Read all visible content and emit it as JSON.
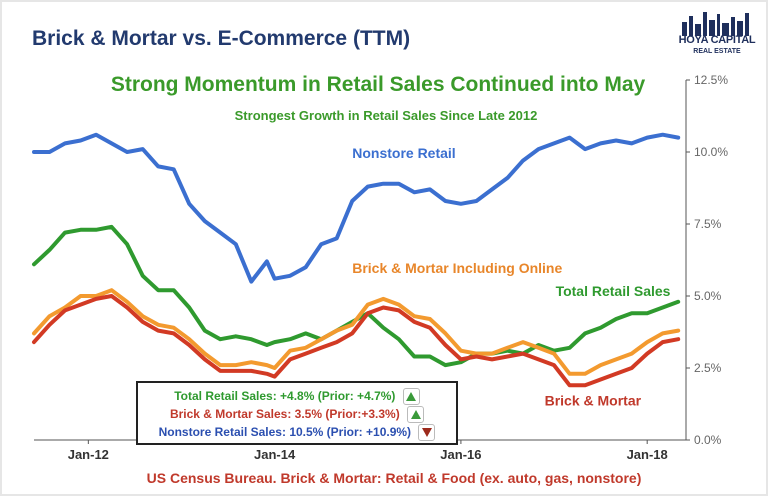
{
  "chart_data": {
    "type": "line",
    "title": "Brick & Mortar vs. E-Commerce (TTM)",
    "headline": "Strong Momentum in Retail Sales Continued into May",
    "subtitle": "Strongest Growth in Retail Sales Since Late 2012",
    "source": "US Census Bureau. Brick & Mortar: Retail & Food (ex. auto, gas, nonstore)",
    "x_tick_labels": [
      "Jan-12",
      "Jan-14",
      "Jan-16",
      "Jan-18"
    ],
    "y_tick_labels": [
      "0.0%",
      "2.5%",
      "5.0%",
      "7.5%",
      "10.0%",
      "12.5%"
    ],
    "ylim": [
      0,
      12.5
    ],
    "y_axis_side": "right",
    "grid": false,
    "series": [
      {
        "name": "Nonstore Retail",
        "color": "#3b6fd0",
        "label_color": "#3b6fd0",
        "points": [
          [
            "2011-06",
            10.0
          ],
          [
            "2011-08",
            10.0
          ],
          [
            "2011-10",
            10.3
          ],
          [
            "2011-12",
            10.4
          ],
          [
            "2012-02",
            10.6
          ],
          [
            "2012-04",
            10.3
          ],
          [
            "2012-06",
            10.0
          ],
          [
            "2012-08",
            10.1
          ],
          [
            "2012-10",
            9.5
          ],
          [
            "2012-12",
            9.4
          ],
          [
            "2013-02",
            8.2
          ],
          [
            "2013-04",
            7.6
          ],
          [
            "2013-06",
            7.2
          ],
          [
            "2013-08",
            6.8
          ],
          [
            "2013-10",
            5.5
          ],
          [
            "2013-12",
            6.2
          ],
          [
            "2014-01",
            5.6
          ],
          [
            "2014-03",
            5.7
          ],
          [
            "2014-05",
            6.0
          ],
          [
            "2014-07",
            6.8
          ],
          [
            "2014-09",
            7.0
          ],
          [
            "2014-11",
            8.3
          ],
          [
            "2015-01",
            8.8
          ],
          [
            "2015-03",
            8.9
          ],
          [
            "2015-05",
            8.9
          ],
          [
            "2015-07",
            8.6
          ],
          [
            "2015-09",
            8.7
          ],
          [
            "2015-11",
            8.3
          ],
          [
            "2016-01",
            8.2
          ],
          [
            "2016-03",
            8.3
          ],
          [
            "2016-05",
            8.7
          ],
          [
            "2016-07",
            9.1
          ],
          [
            "2016-09",
            9.7
          ],
          [
            "2016-11",
            10.1
          ],
          [
            "2017-01",
            10.3
          ],
          [
            "2017-03",
            10.5
          ],
          [
            "2017-05",
            10.1
          ],
          [
            "2017-07",
            10.3
          ],
          [
            "2017-09",
            10.4
          ],
          [
            "2017-11",
            10.3
          ],
          [
            "2018-01",
            10.5
          ],
          [
            "2018-03",
            10.6
          ],
          [
            "2018-05",
            10.5
          ]
        ]
      },
      {
        "name": "Total Retail Sales",
        "color": "#2f9a2f",
        "label_color": "#2f9a2f",
        "points": [
          [
            "2011-06",
            6.1
          ],
          [
            "2011-08",
            6.6
          ],
          [
            "2011-10",
            7.2
          ],
          [
            "2011-12",
            7.3
          ],
          [
            "2012-02",
            7.3
          ],
          [
            "2012-04",
            7.4
          ],
          [
            "2012-06",
            6.8
          ],
          [
            "2012-08",
            5.7
          ],
          [
            "2012-10",
            5.2
          ],
          [
            "2012-12",
            5.2
          ],
          [
            "2013-02",
            4.6
          ],
          [
            "2013-04",
            3.8
          ],
          [
            "2013-06",
            3.5
          ],
          [
            "2013-08",
            3.6
          ],
          [
            "2013-10",
            3.5
          ],
          [
            "2013-12",
            3.3
          ],
          [
            "2014-01",
            3.4
          ],
          [
            "2014-03",
            3.5
          ],
          [
            "2014-05",
            3.7
          ],
          [
            "2014-07",
            3.5
          ],
          [
            "2014-09",
            3.8
          ],
          [
            "2014-11",
            4.1
          ],
          [
            "2015-01",
            4.4
          ],
          [
            "2015-03",
            3.9
          ],
          [
            "2015-05",
            3.5
          ],
          [
            "2015-07",
            2.9
          ],
          [
            "2015-09",
            2.9
          ],
          [
            "2015-11",
            2.6
          ],
          [
            "2016-01",
            2.7
          ],
          [
            "2016-03",
            3.0
          ],
          [
            "2016-05",
            3.0
          ],
          [
            "2016-07",
            3.1
          ],
          [
            "2016-09",
            3.0
          ],
          [
            "2016-11",
            3.3
          ],
          [
            "2017-01",
            3.1
          ],
          [
            "2017-03",
            3.2
          ],
          [
            "2017-05",
            3.7
          ],
          [
            "2017-07",
            3.9
          ],
          [
            "2017-09",
            4.2
          ],
          [
            "2017-11",
            4.4
          ],
          [
            "2018-01",
            4.4
          ],
          [
            "2018-03",
            4.6
          ],
          [
            "2018-05",
            4.8
          ]
        ]
      },
      {
        "name": "Brick & Mortar Including Online",
        "color": "#f39a2f",
        "label_color": "#e8862a",
        "points": [
          [
            "2011-06",
            3.7
          ],
          [
            "2011-08",
            4.3
          ],
          [
            "2011-10",
            4.6
          ],
          [
            "2011-12",
            5.0
          ],
          [
            "2012-02",
            5.0
          ],
          [
            "2012-04",
            5.2
          ],
          [
            "2012-06",
            4.8
          ],
          [
            "2012-08",
            4.3
          ],
          [
            "2012-10",
            4.0
          ],
          [
            "2012-12",
            3.9
          ],
          [
            "2013-02",
            3.5
          ],
          [
            "2013-04",
            3.0
          ],
          [
            "2013-06",
            2.6
          ],
          [
            "2013-08",
            2.6
          ],
          [
            "2013-10",
            2.7
          ],
          [
            "2013-12",
            2.6
          ],
          [
            "2014-01",
            2.5
          ],
          [
            "2014-03",
            3.1
          ],
          [
            "2014-05",
            3.2
          ],
          [
            "2014-07",
            3.5
          ],
          [
            "2014-09",
            3.8
          ],
          [
            "2014-11",
            4.0
          ],
          [
            "2015-01",
            4.7
          ],
          [
            "2015-03",
            4.9
          ],
          [
            "2015-05",
            4.7
          ],
          [
            "2015-07",
            4.3
          ],
          [
            "2015-09",
            4.2
          ],
          [
            "2015-11",
            3.7
          ],
          [
            "2016-01",
            3.1
          ],
          [
            "2016-03",
            3.0
          ],
          [
            "2016-05",
            3.0
          ],
          [
            "2016-07",
            3.2
          ],
          [
            "2016-09",
            3.4
          ],
          [
            "2016-11",
            3.2
          ],
          [
            "2017-01",
            3.0
          ],
          [
            "2017-03",
            2.3
          ],
          [
            "2017-05",
            2.3
          ],
          [
            "2017-07",
            2.6
          ],
          [
            "2017-09",
            2.8
          ],
          [
            "2017-11",
            3.0
          ],
          [
            "2018-01",
            3.4
          ],
          [
            "2018-03",
            3.7
          ],
          [
            "2018-05",
            3.8
          ]
        ]
      },
      {
        "name": "Brick & Mortar",
        "color": "#d23a24",
        "label_color": "#c0392b",
        "points": [
          [
            "2011-06",
            3.4
          ],
          [
            "2011-08",
            4.0
          ],
          [
            "2011-10",
            4.5
          ],
          [
            "2011-12",
            4.7
          ],
          [
            "2012-02",
            4.9
          ],
          [
            "2012-04",
            5.0
          ],
          [
            "2012-06",
            4.6
          ],
          [
            "2012-08",
            4.1
          ],
          [
            "2012-10",
            3.8
          ],
          [
            "2012-12",
            3.7
          ],
          [
            "2013-02",
            3.3
          ],
          [
            "2013-04",
            2.8
          ],
          [
            "2013-06",
            2.4
          ],
          [
            "2013-08",
            2.4
          ],
          [
            "2013-10",
            2.4
          ],
          [
            "2013-12",
            2.3
          ],
          [
            "2014-01",
            2.2
          ],
          [
            "2014-03",
            2.8
          ],
          [
            "2014-05",
            3.0
          ],
          [
            "2014-07",
            3.2
          ],
          [
            "2014-09",
            3.4
          ],
          [
            "2014-11",
            3.7
          ],
          [
            "2015-01",
            4.4
          ],
          [
            "2015-03",
            4.6
          ],
          [
            "2015-05",
            4.5
          ],
          [
            "2015-07",
            4.1
          ],
          [
            "2015-09",
            3.9
          ],
          [
            "2015-11",
            3.3
          ],
          [
            "2016-01",
            2.8
          ],
          [
            "2016-03",
            2.9
          ],
          [
            "2016-05",
            2.8
          ],
          [
            "2016-07",
            2.9
          ],
          [
            "2016-09",
            3.0
          ],
          [
            "2016-11",
            2.8
          ],
          [
            "2017-01",
            2.6
          ],
          [
            "2017-03",
            1.9
          ],
          [
            "2017-05",
            1.9
          ],
          [
            "2017-07",
            2.1
          ],
          [
            "2017-09",
            2.3
          ],
          [
            "2017-11",
            2.5
          ],
          [
            "2018-01",
            3.0
          ],
          [
            "2018-03",
            3.4
          ],
          [
            "2018-05",
            3.5
          ]
        ]
      }
    ],
    "summary": [
      {
        "text": "Total Retail Sales: +4.8% (Prior: +4.7%)",
        "color": "#2f9a2f",
        "direction": "up"
      },
      {
        "text": "Brick & Mortar Sales: 3.5% (Prior:+3.3%)",
        "color": "#c0392b",
        "direction": "up"
      },
      {
        "text": "Nonstore Retail Sales: 10.5% (Prior: +10.9%)",
        "color": "#2b4fb0",
        "direction": "down"
      }
    ]
  },
  "logo": {
    "name": "HOYA CAPITAL",
    "sub": "REAL ESTATE"
  },
  "colors": {
    "title": "#223a6e",
    "headline": "#3a9a2a",
    "source": "#c0392b",
    "axis": "#666666"
  }
}
